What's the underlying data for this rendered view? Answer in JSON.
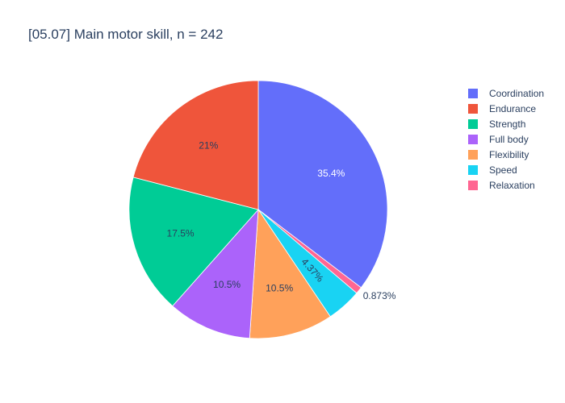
{
  "chart_data": {
    "type": "pie",
    "title": "[05.07] Main motor skill, n = 242",
    "slices": [
      {
        "label": "Coordination",
        "percent": 35.4,
        "percent_label": "35.4%",
        "color": "#636efa",
        "label_position": "inside"
      },
      {
        "label": "Relaxation",
        "percent": 0.873,
        "percent_label": "0.873%",
        "color": "#ff6692",
        "label_position": "outside"
      },
      {
        "label": "Speed",
        "percent": 4.37,
        "percent_label": "4.37%",
        "color": "#19d3f3",
        "label_position": "inside-rotated"
      },
      {
        "label": "Flexibility",
        "percent": 10.5,
        "percent_label": "10.5%",
        "color": "#ffa15a",
        "label_position": "inside"
      },
      {
        "label": "Full body",
        "percent": 10.5,
        "percent_label": "10.5%",
        "color": "#ab63fa",
        "label_position": "inside"
      },
      {
        "label": "Strength",
        "percent": 17.5,
        "percent_label": "17.5%",
        "color": "#00cc96",
        "label_position": "inside"
      },
      {
        "label": "Endurance",
        "percent": 21,
        "percent_label": "21%",
        "color": "#ef553b",
        "label_position": "inside"
      }
    ],
    "legend": [
      "Coordination",
      "Endurance",
      "Strength",
      "Full body",
      "Flexibility",
      "Speed",
      "Relaxation"
    ],
    "legend_placement": "top-right"
  }
}
